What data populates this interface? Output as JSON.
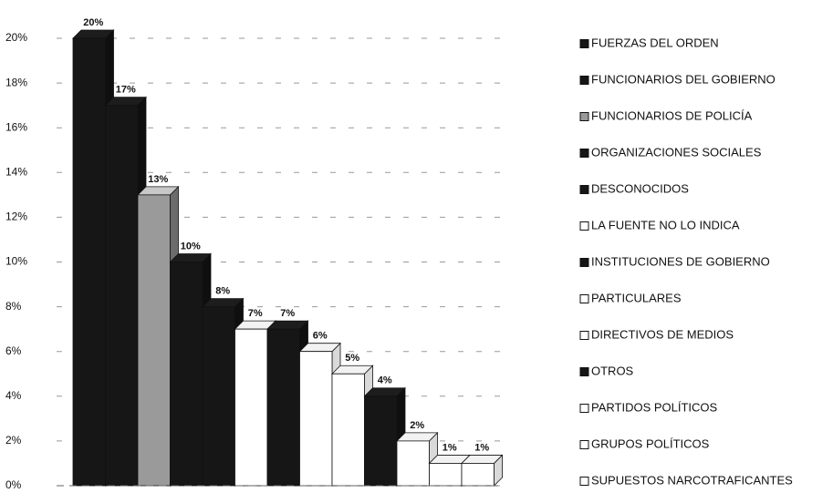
{
  "chart_data": {
    "type": "bar3d",
    "categories": [
      "FUERZAS DEL ORDEN",
      "FUNCIONARIOS DEL GOBIERNO",
      "FUNCIONARIOS DE POLICÍA",
      "ORGANIZACIONES SOCIALES",
      "DESCONOCIDOS",
      "LA FUENTE NO LO INDICA",
      "INSTITUCIONES DE GOBIERNO",
      "PARTICULARES",
      "DIRECTIVOS DE MEDIOS",
      "OTROS",
      "PARTIDOS POLÍTICOS",
      "GRUPOS POLÍTICOS",
      "SUPUESTOS NARCOTRAFICANTES"
    ],
    "values": [
      20,
      17,
      13,
      10,
      8,
      7,
      7,
      6,
      5,
      4,
      2,
      1,
      1
    ],
    "value_labels": [
      "20%",
      "17%",
      "13%",
      "10%",
      "8%",
      "7%",
      "7%",
      "6%",
      "5%",
      "4%",
      "2%",
      "1%",
      "1%"
    ],
    "colors": [
      "#161616",
      "#161616",
      "#9a9a9a",
      "#161616",
      "#161616",
      "#ffffff",
      "#161616",
      "#ffffff",
      "#ffffff",
      "#161616",
      "#ffffff",
      "#ffffff",
      "#ffffff"
    ],
    "ylim": [
      0,
      20
    ],
    "yticks": [
      {
        "value": 0,
        "label": "0%"
      },
      {
        "value": 2,
        "label": "2%"
      },
      {
        "value": 4,
        "label": "4%"
      },
      {
        "value": 6,
        "label": "6%"
      },
      {
        "value": 8,
        "label": "8%"
      },
      {
        "value": 10,
        "label": "10%"
      },
      {
        "value": 12,
        "label": "12%"
      },
      {
        "value": 14,
        "label": "14%"
      },
      {
        "value": 16,
        "label": "16%"
      },
      {
        "value": 18,
        "label": "18%"
      },
      {
        "value": 20,
        "label": "20%"
      }
    ],
    "grid": true,
    "legend": "right"
  }
}
